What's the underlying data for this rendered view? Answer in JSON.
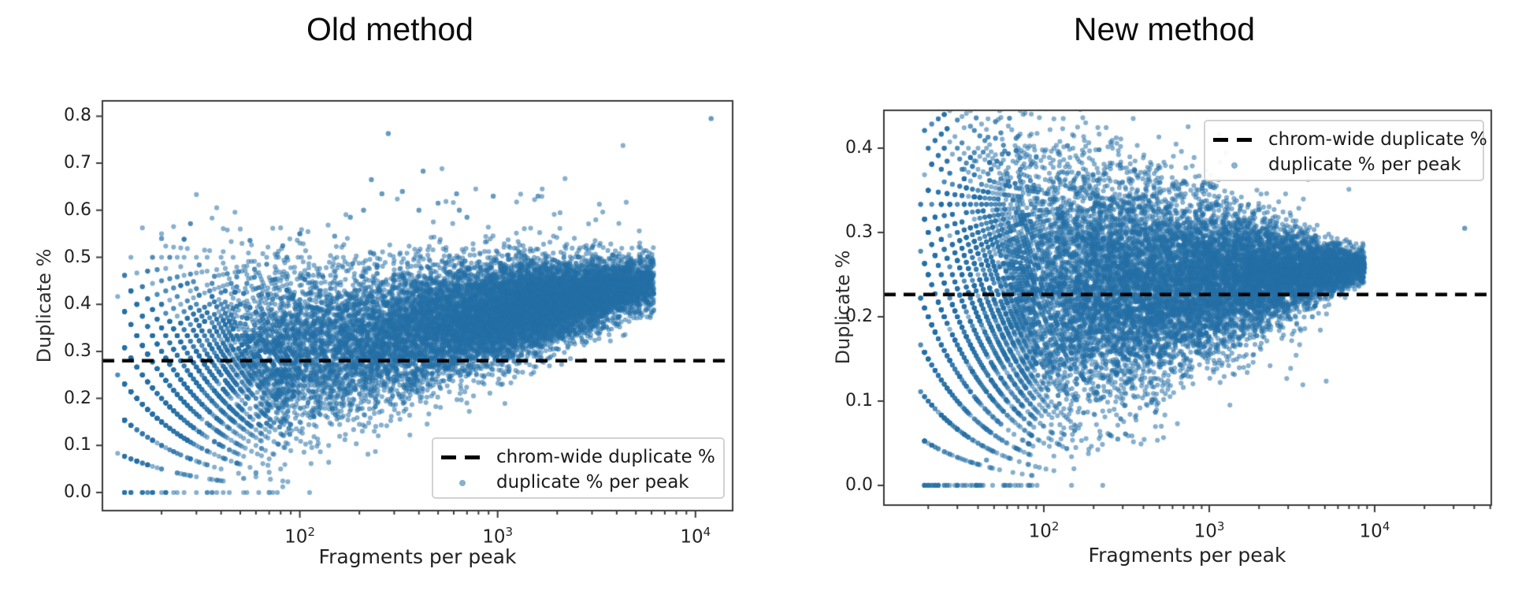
{
  "page": {
    "background": "#ffffff",
    "spine_color": "#3a3a3a",
    "text_color": "#1a1a1a"
  },
  "chart_data": [
    {
      "type": "scatter",
      "title": "Old method",
      "xlabel": "Fragments per peak",
      "ylabel": "Duplicate %",
      "x_scale": "log",
      "xlim_log10": [
        1.002,
        4.188
      ],
      "ylim": [
        -0.0385,
        0.8325
      ],
      "grid": false,
      "legend_position": "lower right",
      "xticks": [
        {
          "text": "10",
          "sup": "2",
          "log10": 2
        },
        {
          "text": "10",
          "sup": "3",
          "log10": 3
        },
        {
          "text": "10",
          "sup": "4",
          "log10": 4
        }
      ],
      "yticks": [
        {
          "label": "0.0",
          "value": 0.0
        },
        {
          "label": "0.1",
          "value": 0.1
        },
        {
          "label": "0.2",
          "value": 0.2
        },
        {
          "label": "0.3",
          "value": 0.3
        },
        {
          "label": "0.4",
          "value": 0.4
        },
        {
          "label": "0.5",
          "value": 0.5
        },
        {
          "label": "0.6",
          "value": 0.6
        },
        {
          "label": "0.7",
          "value": 0.7
        },
        {
          "label": "0.8",
          "value": 0.8
        }
      ],
      "threshold": {
        "value": 0.28,
        "label": "chrom-wide duplicate %",
        "color": "#000000",
        "style": "dashed"
      },
      "scatter_legend_label": "duplicate % per peak",
      "point_color": "#2470a5",
      "point_alpha": 0.55,
      "n_points": 15000,
      "cloud": {
        "description": "duplicate fraction rises with fragments per peak; wide funnel with k/n quantization bands at low counts, dense core from ~100 to ~6000 fragments centered 0.28-0.45",
        "components": [
          {
            "dist": "normal",
            "mean": 3.25,
            "sd": 0.4,
            "weight": 0.54
          },
          {
            "dist": "normal",
            "mean": 2.35,
            "sd": 0.55,
            "weight": 0.36
          },
          {
            "dist": "uniform",
            "min": 1.1,
            "max": 2.0,
            "weight": 0.1
          }
        ],
        "logx_range": [
          1.08,
          3.79
        ],
        "min_n": 12,
        "mean_y": {
          "intercept": 0.135,
          "slope": 0.082
        },
        "sd_y": {
          "intercept": 0.162,
          "slope": -0.036,
          "min": 0.027
        },
        "high_tail": {
          "fraction": 0.007,
          "max": 0.26
        },
        "low_tail": {
          "fraction": 0.0025,
          "max": 0.09
        }
      },
      "outliers": [
        [
          12000,
          0.795
        ],
        [
          280,
          0.763
        ],
        [
          420,
          0.683
        ],
        [
          230,
          0.665
        ],
        [
          330,
          0.64
        ],
        [
          260,
          0.635
        ],
        [
          620,
          0.635
        ],
        [
          950,
          0.63
        ],
        [
          1600,
          0.63
        ],
        [
          500,
          0.615
        ],
        [
          400,
          0.6
        ],
        [
          640,
          0.6
        ],
        [
          210,
          0.6
        ],
        [
          180,
          0.585
        ],
        [
          700,
          0.585
        ],
        [
          100,
          0.55
        ],
        [
          150,
          0.545
        ],
        [
          20,
          0.54
        ],
        [
          3000,
          0.52
        ],
        [
          70,
          0.0
        ],
        [
          52,
          0.03
        ],
        [
          60,
          0.042
        ]
      ]
    },
    {
      "type": "scatter",
      "title": "New method",
      "xlabel": "Fragments per peak",
      "ylabel": "Duplicate %",
      "x_scale": "log",
      "xlim_log10": [
        1.033,
        4.705
      ],
      "ylim": [
        -0.0234,
        0.4449
      ],
      "grid": false,
      "legend_position": "upper right",
      "xticks": [
        {
          "text": "10",
          "sup": "2",
          "log10": 2
        },
        {
          "text": "10",
          "sup": "3",
          "log10": 3
        },
        {
          "text": "10",
          "sup": "4",
          "log10": 4
        }
      ],
      "yticks": [
        {
          "label": "0.0",
          "value": 0.0
        },
        {
          "label": "0.1",
          "value": 0.1
        },
        {
          "label": "0.2",
          "value": 0.2
        },
        {
          "label": "0.3",
          "value": 0.3
        },
        {
          "label": "0.4",
          "value": 0.4
        }
      ],
      "threshold": {
        "value": 0.2265,
        "label": "chrom-wide duplicate %",
        "color": "#000000",
        "style": "dashed"
      },
      "scatter_legend_label": "duplicate % per peak",
      "point_color": "#2470a5",
      "point_alpha": 0.55,
      "n_points": 15000,
      "cloud": {
        "description": "duplicate fraction roughly constant ~0.25; wide funnel at low counts narrowing to a tight tip near 8000 fragments; k/n quantization bands at low counts",
        "components": [
          {
            "dist": "normal",
            "mean": 3.35,
            "sd": 0.55,
            "weight": 0.5
          },
          {
            "dist": "normal",
            "mean": 2.3,
            "sd": 0.5,
            "weight": 0.4
          },
          {
            "dist": "uniform",
            "min": 1.26,
            "max": 1.95,
            "weight": 0.1
          }
        ],
        "logx_range": [
          1.26,
          3.94
        ],
        "min_n": 18,
        "mean_y": {
          "intercept": 0.2,
          "slope": 0.015
        },
        "sd_y": {
          "intercept": 0.165,
          "slope": -0.04,
          "min": 0.01
        },
        "high_tail": {
          "fraction": 0.005,
          "max": 0.13
        },
        "low_tail": {
          "fraction": 0.004,
          "max": 0.13
        }
      },
      "outliers": [
        [
          35000,
          0.305
        ],
        [
          36,
          0.426
        ],
        [
          90,
          0.39
        ],
        [
          38,
          0.385
        ],
        [
          33,
          0.375
        ],
        [
          60,
          0.37
        ],
        [
          120,
          0.365
        ],
        [
          250,
          0.06
        ],
        [
          280,
          0.055
        ],
        [
          310,
          0.095
        ],
        [
          230,
          0.105
        ],
        [
          4200,
          0.2
        ],
        [
          700,
          0.155
        ],
        [
          30,
          0.0
        ],
        [
          45,
          0.03
        ]
      ]
    }
  ]
}
